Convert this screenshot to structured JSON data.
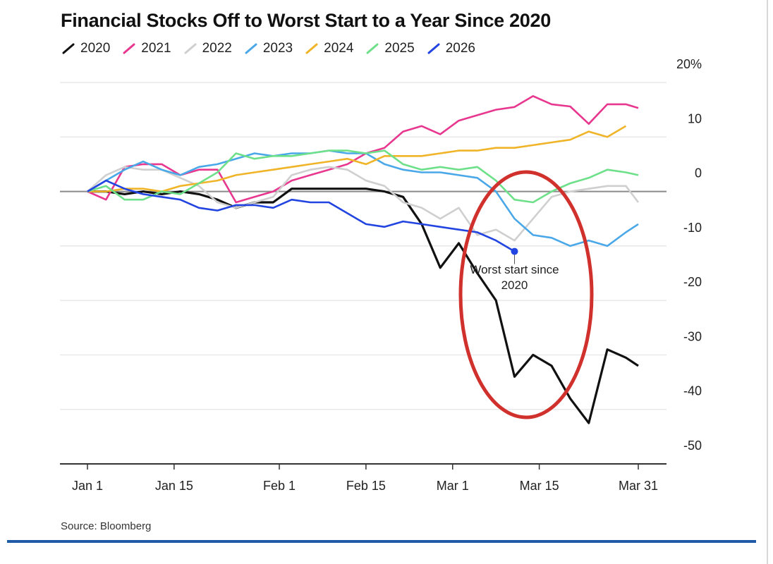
{
  "chart_data": {
    "type": "line",
    "title": "Financial Stocks Off to Worst Start to a Year Since 2020",
    "source": "Source: Bloomberg",
    "annotation": "Worst start since 2020",
    "x": [
      1,
      4,
      7,
      10,
      13,
      16,
      19,
      22,
      25,
      28,
      31,
      34,
      37,
      40,
      43,
      46,
      49,
      52,
      55,
      58,
      61,
      64,
      67,
      70,
      73,
      76,
      79,
      82,
      85,
      88,
      90
    ],
    "xlim": [
      1,
      90
    ],
    "xticks": [
      {
        "value": 1,
        "label": "Jan 1"
      },
      {
        "value": 15,
        "label": "Jan 15"
      },
      {
        "value": 32,
        "label": "Feb 1"
      },
      {
        "value": 46,
        "label": "Feb 15"
      },
      {
        "value": 60,
        "label": "Mar 1"
      },
      {
        "value": 74,
        "label": "Mar 15"
      },
      {
        "value": 90,
        "label": "Mar 31"
      }
    ],
    "ylim": [
      -50,
      20
    ],
    "yticks": [
      {
        "value": 20,
        "label": "20%"
      },
      10,
      0,
      -10,
      -20,
      -30,
      -40,
      -50
    ],
    "grid": true,
    "series": [
      {
        "name": "2020",
        "color": "#111111",
        "values": [
          0,
          0,
          -0.5,
          0,
          -0.5,
          0,
          -0.5,
          -1.5,
          -3,
          -2,
          -2,
          0.5,
          0.5,
          0.5,
          0.5,
          0.5,
          0,
          -1,
          -6,
          -14,
          -9.5,
          -15,
          -20,
          -34,
          -30,
          -32,
          -38,
          -42.5,
          -29,
          -30.5,
          -32
        ]
      },
      {
        "name": "2021",
        "color": "#e8378f",
        "values": [
          0,
          -1.5,
          4.5,
          5,
          5,
          3,
          4,
          4,
          -2,
          -1,
          0,
          2,
          3,
          4,
          5,
          7,
          8,
          11,
          12,
          10.5,
          13,
          14,
          15,
          15.5,
          17.5,
          16,
          15.6,
          12.4,
          16,
          16,
          15.3
        ]
      },
      {
        "name": "2022",
        "color": "#cfcfcf",
        "values": [
          0,
          3,
          4.5,
          4,
          4,
          2.5,
          1,
          -2,
          -3,
          -2,
          -1,
          3,
          4,
          4.5,
          4,
          2,
          1,
          -2,
          -3,
          -5,
          -3,
          -8,
          -7,
          -9,
          -5,
          -1,
          0,
          0.5,
          1,
          1,
          -2
        ]
      },
      {
        "name": "2023",
        "color": "#4aa8e8",
        "values": [
          0,
          2,
          4,
          5.5,
          4,
          3,
          4.5,
          5,
          6,
          7,
          6.5,
          7,
          7,
          7.5,
          7,
          7,
          5,
          4,
          3.5,
          3.5,
          3,
          2.5,
          0,
          -5,
          -8,
          -8.5,
          -10,
          -9,
          -10,
          -7.5,
          -6
        ]
      },
      {
        "name": "2024",
        "color": "#f0b429",
        "values": [
          0,
          0,
          0.5,
          0.5,
          0,
          1,
          1.5,
          2,
          3,
          3.5,
          4,
          4.5,
          5,
          5.5,
          6,
          5,
          6.5,
          6.5,
          6.5,
          7,
          7.5,
          7.5,
          8,
          8,
          8.5,
          9,
          9.5,
          11,
          10,
          12,
          null
        ]
      },
      {
        "name": "2025",
        "color": "#6ee08a",
        "values": [
          0,
          1,
          -1.5,
          -1.5,
          0,
          -0.5,
          1.5,
          3.5,
          7,
          6,
          6.5,
          6.5,
          7,
          7.5,
          7.5,
          7,
          7.5,
          5,
          4,
          4.5,
          4,
          4.5,
          2,
          -1.5,
          -2,
          0,
          1.5,
          2.5,
          4,
          3.5,
          3
        ]
      },
      {
        "name": "2026",
        "color": "#2244e0",
        "values": [
          0,
          2,
          0.5,
          -0.5,
          -1,
          -1.5,
          -3,
          -3.5,
          -2.5,
          -2.5,
          -3,
          -1.5,
          -2,
          -2,
          -4,
          -6,
          -6.5,
          -5.5,
          -6,
          -6.5,
          -7,
          -7.5,
          -9,
          -11,
          null,
          null,
          null,
          null,
          null,
          null,
          null
        ]
      }
    ]
  }
}
